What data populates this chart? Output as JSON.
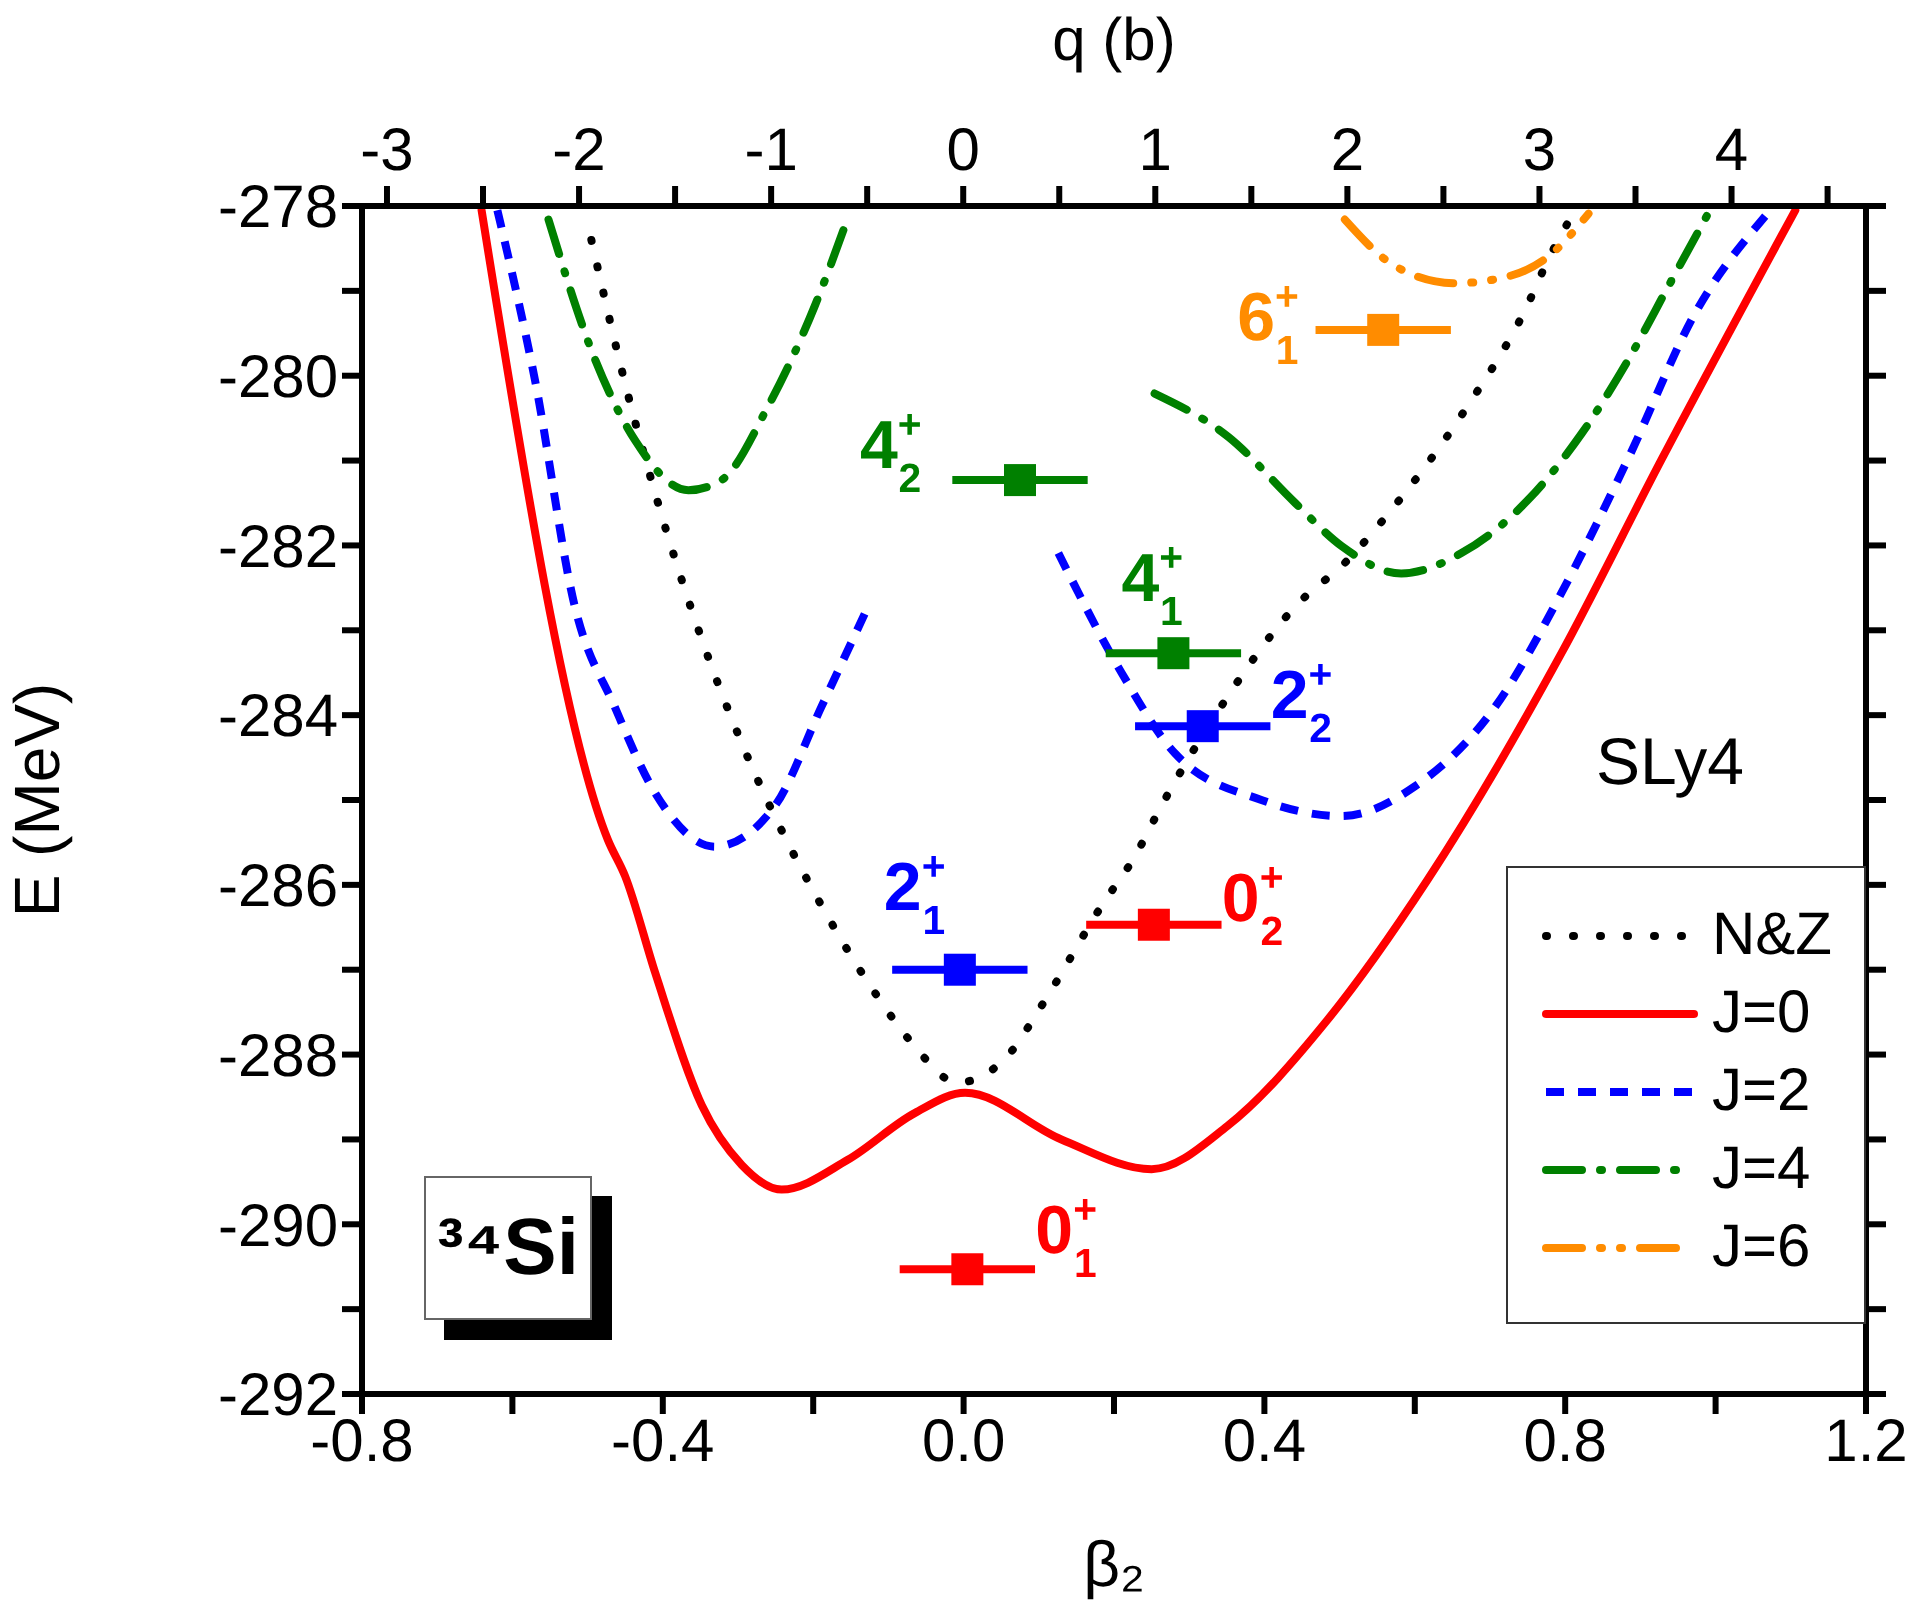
{
  "chart_data": {
    "type": "line",
    "xlabel": "β₂",
    "ylabel": "E (MeV)",
    "x2label": "q (b)",
    "xlim": [
      -0.8,
      1.2
    ],
    "xticks": [
      -0.8,
      {
        "value": -0.6,
        "label": null
      },
      -0.4,
      {
        "value": -0.2,
        "label": null
      },
      {
        "value": 0,
        "label": "0.0"
      },
      {
        "value": 0.2,
        "label": null
      },
      0.4,
      {
        "value": 0.6,
        "label": null
      },
      0.8,
      {
        "value": 1.0,
        "label": null
      },
      1.2
    ],
    "x2lim": [
      -3.13,
      4.7
    ],
    "x2ticks": [
      -3,
      {
        "value": -2.5,
        "label": null
      },
      -2,
      {
        "value": -1.5,
        "label": null
      },
      -1,
      {
        "value": -0.5,
        "label": null
      },
      0,
      {
        "value": 0.5,
        "label": null
      },
      1,
      {
        "value": 1.5,
        "label": null
      },
      2,
      {
        "value": 2.5,
        "label": null
      },
      3,
      {
        "value": 3.5,
        "label": null
      },
      4,
      {
        "value": 4.5,
        "label": null
      }
    ],
    "ylim": [
      -292,
      -278
    ],
    "yticks": [
      -292,
      {
        "value": -291,
        "label": null
      },
      -290,
      {
        "value": -289,
        "label": null
      },
      -288,
      {
        "value": -287,
        "label": null
      },
      -286,
      {
        "value": -285,
        "label": null
      },
      -284,
      {
        "value": -283,
        "label": null
      },
      -282,
      {
        "value": -281,
        "label": null
      },
      -280,
      {
        "value": -279,
        "label": null
      },
      -278
    ],
    "legend": "bottom right",
    "annotations": [
      "SLy4",
      "³⁴Si"
    ],
    "series": [
      {
        "name": "N&Z",
        "line_style": "dotted",
        "color": "#000000",
        "x": [
          -0.495,
          -0.447,
          -0.41,
          -0.348,
          -0.295,
          -0.234,
          -0.198,
          -0.118,
          -0.069,
          -0.008,
          0.059,
          0.104,
          0.184,
          0.228,
          0.263,
          0.343,
          0.441,
          0.511,
          0.569,
          0.667,
          0.747,
          0.777,
          0.813
        ],
        "values": [
          -278.4,
          -280.2,
          -281.39,
          -283.11,
          -284.33,
          -285.5,
          -286.1,
          -287.27,
          -287.86,
          -288.33,
          -288.01,
          -287.42,
          -286.24,
          -285.66,
          -285.07,
          -283.89,
          -282.72,
          -282.17,
          -281.58,
          -280.4,
          -279.22,
          -278.64,
          -278.05
        ]
      },
      {
        "name": "J=0",
        "line_style": "solid",
        "color": "#ff0000",
        "x": [
          -0.641,
          -0.473,
          -0.45,
          -0.41,
          -0.348,
          -0.295,
          -0.242,
          -0.154,
          -0.065,
          0.002,
          0.13,
          0.25,
          0.351,
          0.484,
          0.617,
          0.795,
          0.928,
          1.106
        ],
        "values": [
          -278.05,
          -285.47,
          -285.9,
          -287.04,
          -288.6,
          -289.3,
          -289.59,
          -289.24,
          -288.69,
          -288.45,
          -289.0,
          -289.35,
          -288.84,
          -287.59,
          -285.94,
          -283.27,
          -280.99,
          -278.05
        ]
      },
      {
        "name": "J=2",
        "line_style": "dashed",
        "color": "#0000ff",
        "x": [
          -0.62,
          -0.57,
          -0.517,
          -0.464,
          -0.41,
          -0.331,
          -0.251,
          -0.189,
          -0.127,
          0.0,
          0.126,
          0.21,
          0.281,
          0.396,
          0.503,
          0.6,
          0.707,
          0.795,
          0.883,
          0.973,
          1.066
        ],
        "values": [
          -278.05,
          -280.05,
          -282.72,
          -283.9,
          -284.92,
          -285.55,
          -285.07,
          -283.9,
          -282.72,
          null,
          -282.09,
          -283.5,
          -284.45,
          -285.0,
          -285.19,
          -284.84,
          -283.9,
          -282.56,
          -280.99,
          -279.26,
          -278.12
        ]
      },
      {
        "name": "J=4",
        "line_style": "dashdot",
        "color": "#008000",
        "x": [
          -0.552,
          -0.49,
          -0.437,
          -0.366,
          -0.322,
          -0.26,
          -0.198,
          -0.158,
          0.05,
          0.254,
          0.352,
          0.441,
          0.503,
          0.582,
          0.662,
          0.751,
          0.822,
          0.884,
          0.937,
          0.99
        ],
        "values": [
          -278.16,
          -279.81,
          -280.76,
          -281.35,
          -281.23,
          -280.36,
          -279.18,
          -278.24,
          null,
          -280.21,
          -280.72,
          -281.5,
          -282.01,
          -282.33,
          -282.09,
          -281.46,
          -280.68,
          -279.81,
          -278.95,
          -278.09
        ]
      },
      {
        "name": "J=6",
        "line_style": "dashdotdot",
        "color": "#ff8c00",
        "x": [
          0.507,
          0.574,
          0.653,
          0.724,
          0.777,
          0.831
        ],
        "values": [
          -278.16,
          -278.71,
          -278.91,
          -278.83,
          -278.6,
          -278.09
        ]
      },
      {
        "name": "0$^{+}$$_{1}$",
        "type": "scatter",
        "marker": "square",
        "color": "#ff0000",
        "x": [
          0.005
        ],
        "values": [
          -290.53
        ],
        "xerrors": [
          0.09
        ]
      },
      {
        "name": "0$^{+}$$_{2}$",
        "type": "scatter",
        "marker": "square",
        "color": "#ff0000",
        "x": [
          0.253
        ],
        "values": [
          -286.47
        ],
        "xerrors": [
          0.09
        ]
      },
      {
        "name": "2$^{+}$$_{1}$",
        "type": "scatter",
        "marker": "square",
        "color": "#0000ff",
        "x": [
          -0.005
        ],
        "values": [
          -287.0
        ],
        "xerrors": [
          0.09
        ]
      },
      {
        "name": "2$^{+}$$_{2}$",
        "type": "scatter",
        "marker": "square",
        "color": "#0000ff",
        "x": [
          0.318
        ],
        "values": [
          -284.13
        ],
        "xerrors": [
          0.09
        ]
      },
      {
        "name": "4$^{+}$$_{1}$",
        "type": "scatter",
        "marker": "square",
        "color": "#008000",
        "x": [
          0.279
        ],
        "values": [
          -283.27
        ],
        "xerrors": [
          0.09
        ]
      },
      {
        "name": "4$^{+}$$_{2}$",
        "type": "scatter",
        "marker": "square",
        "color": "#008000",
        "x": [
          0.075
        ],
        "values": [
          -281.23
        ],
        "xerrors": [
          0.09
        ]
      },
      {
        "name": "6$^{+}$$_{1}$",
        "type": "scatter",
        "marker": "square",
        "color": "#ff8c00",
        "x": [
          0.558
        ],
        "values": [
          -279.46
        ],
        "xerrors": [
          0.09
        ]
      }
    ]
  }
}
